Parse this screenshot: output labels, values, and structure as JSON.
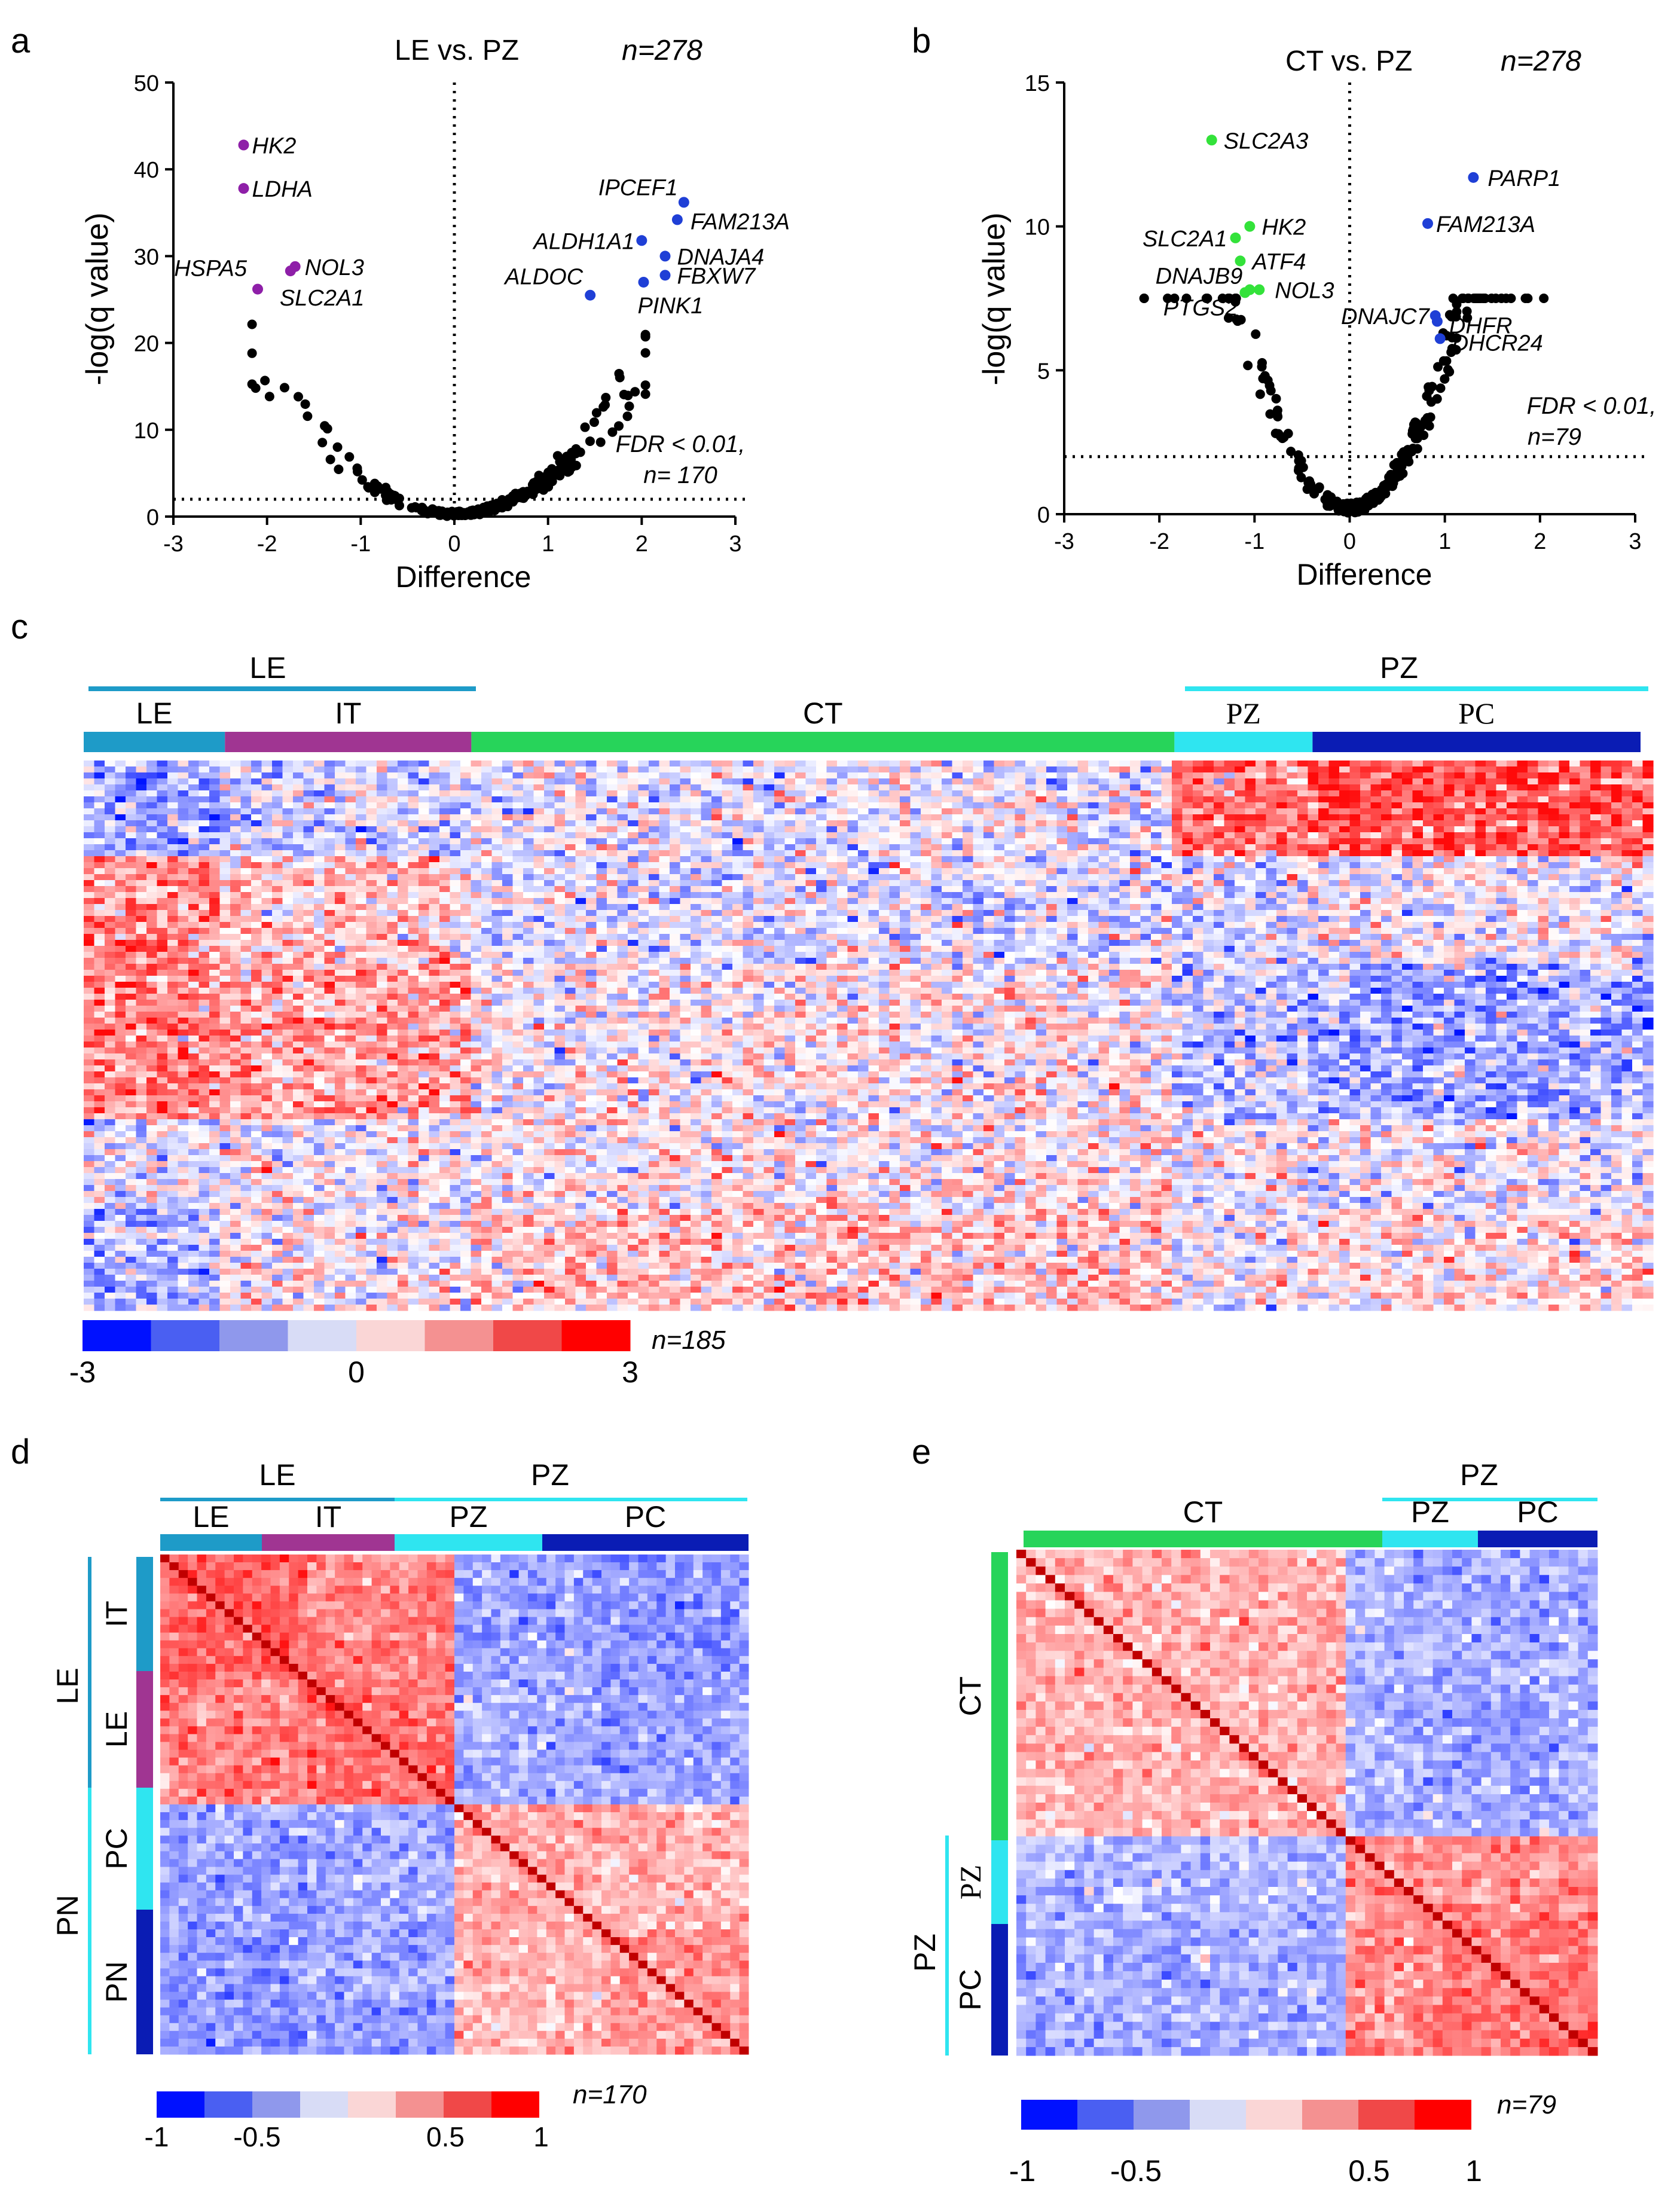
{
  "panels": {
    "a": "a",
    "b": "b",
    "c": "c",
    "d": "d",
    "e": "e"
  },
  "colors": {
    "purple": "#8E1FA8",
    "blue_point": "#1F3FD6",
    "green_point": "#33E23A",
    "bar_le": "#1E9BC8",
    "bar_it": "#A03592",
    "bar_ct": "#27D45A",
    "bar_pz": "#2FE5F0",
    "bar_pc": "#0A1CB4",
    "heat_low": "#0011FF",
    "heat_mid": "#FFFFFF",
    "heat_high": "#FF0000",
    "corr_diag": "#C00000"
  },
  "chart_data": [
    {
      "id": "a",
      "type": "scatter",
      "title": "LE vs. PZ",
      "n_label": "n=278",
      "xlabel": "Difference",
      "ylabel": "-log(q value)",
      "xlim": [
        -3,
        3
      ],
      "ylim": [
        0,
        50
      ],
      "xticks": [
        "-3",
        "-2",
        "-1",
        "0",
        "1",
        "2",
        "3"
      ],
      "yticks": [
        "0",
        "10",
        "20",
        "30",
        "40",
        "50"
      ],
      "threshold_y": 2,
      "threshold_label_1": "FDR < 0.01,",
      "threshold_label_2": "n= 170",
      "labeled_points": [
        {
          "label": "HK2",
          "x": -2.25,
          "y": 42.8,
          "color": "purple"
        },
        {
          "label": "LDHA",
          "x": -2.25,
          "y": 37.8,
          "color": "purple"
        },
        {
          "label": "NOL3",
          "x": -1.7,
          "y": 28.8,
          "color": "purple"
        },
        {
          "label": "HSPA5",
          "x": -2.1,
          "y": 26.2,
          "color": "purple"
        },
        {
          "label": "SLC2A1",
          "x": -1.75,
          "y": 28.3,
          "color": "purple"
        },
        {
          "label": "IPCEF1",
          "x": 2.45,
          "y": 36.2,
          "color": "blue"
        },
        {
          "label": "FAM213A",
          "x": 2.38,
          "y": 34.2,
          "color": "blue"
        },
        {
          "label": "ALDH1A1",
          "x": 2.0,
          "y": 31.8,
          "color": "blue"
        },
        {
          "label": "DNAJA4",
          "x": 2.25,
          "y": 30.0,
          "color": "blue"
        },
        {
          "label": "FBXW7",
          "x": 2.25,
          "y": 27.8,
          "color": "blue"
        },
        {
          "label": "ALDOC",
          "x": 1.45,
          "y": 25.5,
          "color": "blue"
        },
        {
          "label": "PINK1",
          "x": 2.02,
          "y": 27.0,
          "color": "blue"
        }
      ],
      "curve_a": 4.3
    },
    {
      "id": "b",
      "type": "scatter",
      "title": "CT vs. PZ",
      "n_label": "n=278",
      "xlabel": "Difference",
      "ylabel": "-log(q value)",
      "xlim": [
        -3,
        3
      ],
      "ylim": [
        0,
        15
      ],
      "xticks": [
        "-3",
        "-2",
        "-1",
        "0",
        "1",
        "2",
        "3"
      ],
      "yticks": [
        "0",
        "5",
        "10",
        "15"
      ],
      "threshold_y": 2,
      "threshold_label_1": "FDR < 0.01,",
      "threshold_label_2": "n=79",
      "labeled_points": [
        {
          "label": "SLC2A3",
          "x": -1.45,
          "y": 13.0,
          "color": "green"
        },
        {
          "label": "PARP1",
          "x": 1.3,
          "y": 11.7,
          "color": "blue"
        },
        {
          "label": "SLC2A1",
          "x": -1.2,
          "y": 9.6,
          "color": "green"
        },
        {
          "label": "HK2",
          "x": -1.05,
          "y": 10.0,
          "color": "green"
        },
        {
          "label": "FAM213A",
          "x": 0.82,
          "y": 10.1,
          "color": "blue"
        },
        {
          "label": "ATF4",
          "x": -1.15,
          "y": 8.8,
          "color": "green"
        },
        {
          "label": "DNAJB9",
          "x": -1.05,
          "y": 7.8,
          "color": "green"
        },
        {
          "label": "NOL3",
          "x": -0.95,
          "y": 7.8,
          "color": "green"
        },
        {
          "label": "PTGS2",
          "x": -1.1,
          "y": 7.7,
          "color": "green"
        },
        {
          "label": "DNAJC7",
          "x": 0.9,
          "y": 6.9,
          "color": "blue"
        },
        {
          "label": "DHFR",
          "x": 0.92,
          "y": 6.7,
          "color": "blue"
        },
        {
          "label": "DHCR24",
          "x": 0.95,
          "y": 6.1,
          "color": "blue"
        }
      ],
      "curve_a": 5.2
    },
    {
      "id": "c",
      "type": "heatmap",
      "n_label": "n=185",
      "group_top": {
        "LE": "LE",
        "PZ": "PZ"
      },
      "groups": [
        "LE",
        "IT",
        "CT",
        "PZ",
        "PC"
      ],
      "group_fractions": [
        0.09,
        0.157,
        0.448,
        0.088,
        0.209
      ],
      "scale_ticks": [
        "-3",
        "0",
        "3"
      ],
      "scale_range": [
        -3,
        3
      ]
    },
    {
      "id": "d",
      "type": "heatmap",
      "n_label": "n=170",
      "top_groups": {
        "LE": "LE",
        "PZ": "PZ"
      },
      "top_sub": [
        "LE",
        "IT",
        "PZ",
        "PC"
      ],
      "left_outer": [
        "LE",
        "PN"
      ],
      "left_inner": [
        "IT",
        "LE",
        "PC",
        "PN"
      ],
      "scale_ticks": [
        "-1",
        "-0.5",
        "0.5",
        "1"
      ],
      "scale_range": [
        -1,
        1
      ]
    },
    {
      "id": "e",
      "type": "heatmap",
      "n_label": "n=79",
      "top_group": "PZ",
      "top_sub": [
        "CT",
        "PZ",
        "PC"
      ],
      "left_outer": "PZ",
      "left_inner": [
        "CT",
        "PZ",
        "PC"
      ],
      "scale_ticks": [
        "-1",
        "-0.5",
        "0.5",
        "1"
      ],
      "scale_range": [
        -1,
        1
      ]
    }
  ]
}
